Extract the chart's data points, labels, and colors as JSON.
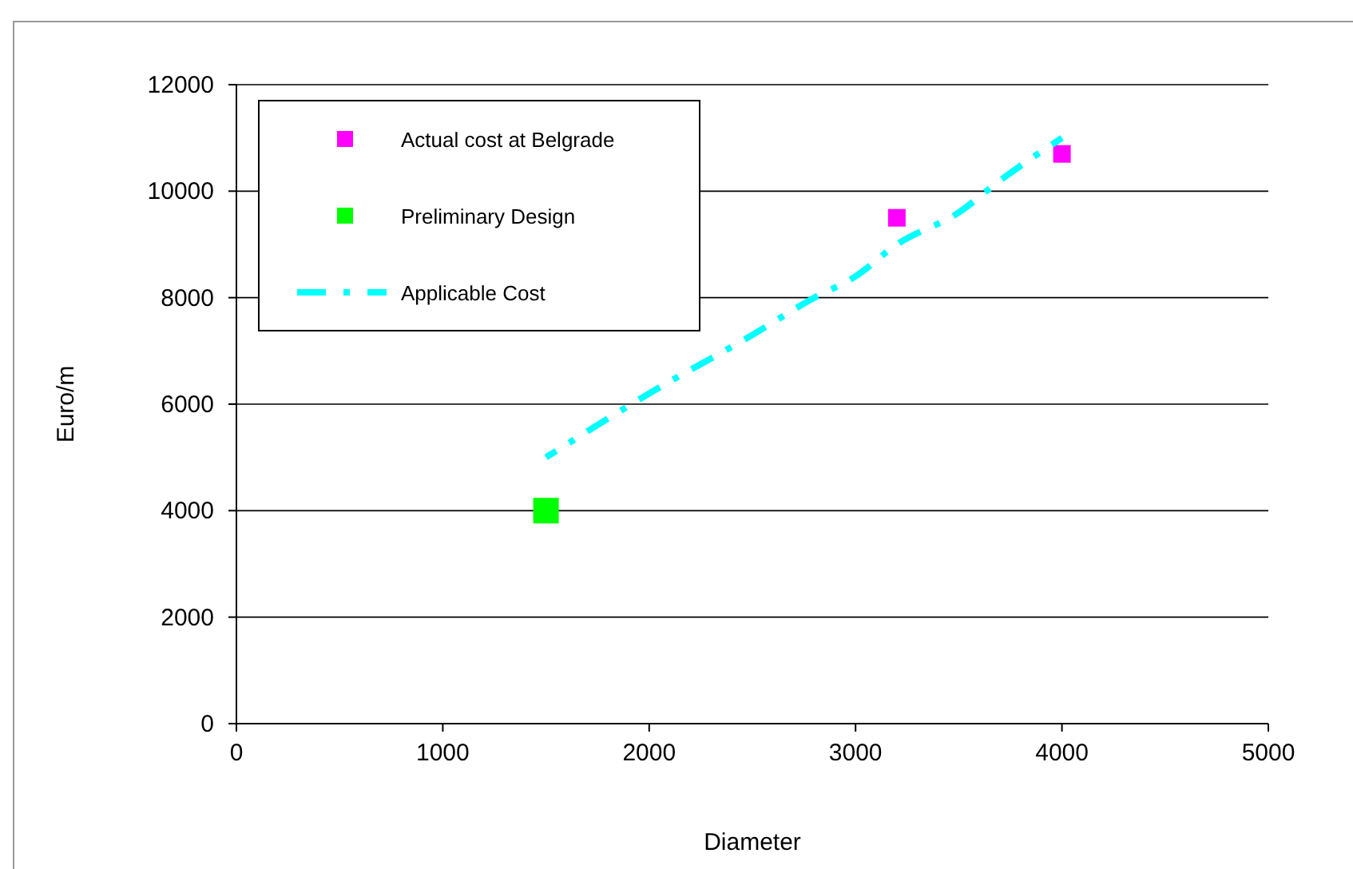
{
  "chart_data": {
    "type": "scatter",
    "xlabel": "Diameter",
    "ylabel": "Euro/m",
    "xlim": [
      0,
      5000
    ],
    "xticks": [
      0,
      1000,
      2000,
      3000,
      4000,
      5000
    ],
    "ylim": [
      0,
      12000
    ],
    "yticks": [
      0,
      2000,
      4000,
      6000,
      8000,
      10000,
      12000
    ],
    "grid": "y",
    "legend": "top left",
    "marker": "square",
    "series": [
      {
        "name": "Actual cost at Belgrade",
        "color": "#ff00ff",
        "x": [
          3200,
          4000
        ],
        "values": [
          9500,
          10700
        ]
      },
      {
        "name": "Preliminary Design",
        "color": "#00ff00",
        "x": [
          1500
        ],
        "values": [
          4000
        ]
      },
      {
        "name": "Applicable Cost",
        "type": "line",
        "color": "#00ffff",
        "line_style": "dashed",
        "marker": "none",
        "x": [
          1500,
          2000,
          2500,
          2800,
          3000,
          3200,
          3500,
          3700,
          4000
        ],
        "values": [
          5000,
          6200,
          7300,
          8000,
          8400,
          9000,
          9600,
          10200,
          11000
        ]
      }
    ]
  }
}
